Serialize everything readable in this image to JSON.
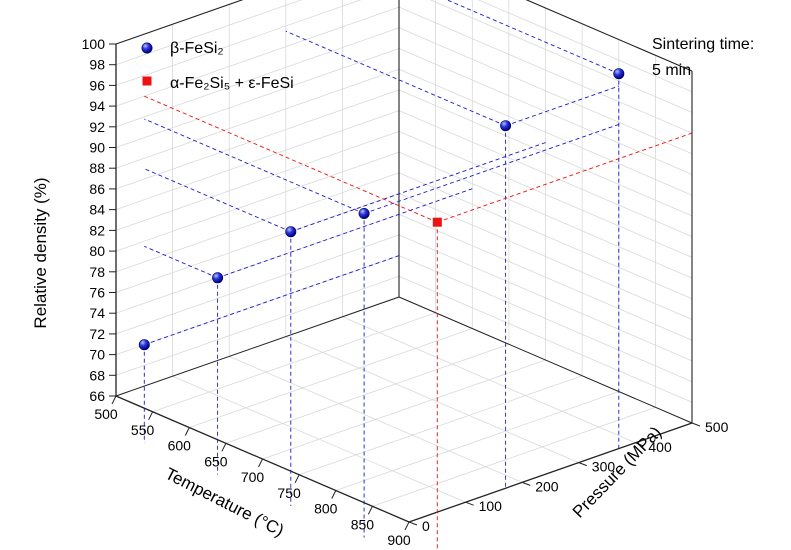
{
  "chart_data": {
    "type": "scatter",
    "projection": "3d",
    "title": "",
    "annotation": [
      "Sintering time:",
      "5 min"
    ],
    "axes": {
      "x": {
        "label": "Temperature (°C)",
        "min": 500,
        "max": 900,
        "ticks": [
          500,
          550,
          600,
          650,
          700,
          750,
          800,
          850,
          900
        ]
      },
      "y": {
        "label": "Pressure (MPa)",
        "min": 0,
        "max": 500,
        "ticks": [
          0,
          100,
          200,
          300,
          400,
          500
        ]
      },
      "z": {
        "label": "Relative density (%)",
        "min": 66,
        "max": 100,
        "ticks": [
          66,
          68,
          70,
          72,
          74,
          76,
          78,
          80,
          82,
          84,
          86,
          88,
          90,
          92,
          94,
          96,
          98,
          100
        ]
      }
    },
    "grid": true,
    "legend_position": "top-left",
    "series": [
      {
        "name": "β-FeSi₂",
        "marker": "sphere",
        "color": "#1a1acc",
        "points": [
          {
            "temperature": 500,
            "pressure": 50,
            "density": 70
          },
          {
            "temperature": 600,
            "pressure": 50,
            "density": 79.5
          },
          {
            "temperature": 700,
            "pressure": 50,
            "density": 87
          },
          {
            "temperature": 800,
            "pressure": 50,
            "density": 91.8
          },
          {
            "temperature": 800,
            "pressure": 300,
            "density": 95.5
          },
          {
            "temperature": 800,
            "pressure": 500,
            "density": 96.7
          }
        ]
      },
      {
        "name": "α-Fe₂Si₅ + ε-FeSi",
        "marker": "square",
        "color": "#ee1111",
        "points": [
          {
            "temperature": 900,
            "pressure": 50,
            "density": 94
          }
        ]
      }
    ]
  }
}
